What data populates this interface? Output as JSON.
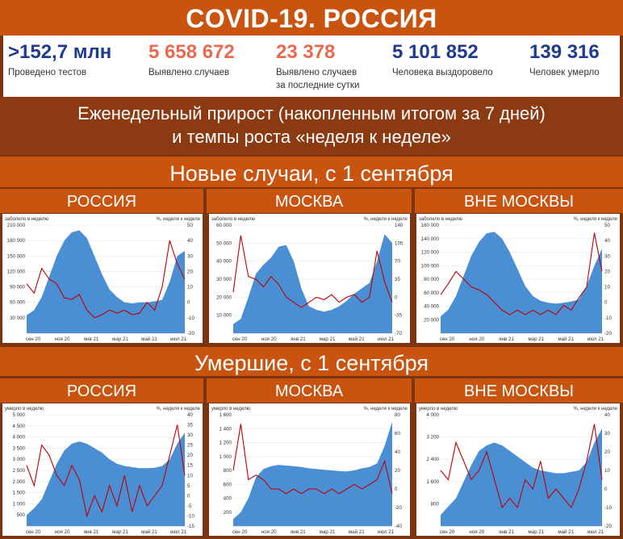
{
  "title": "COVID-19. РОССИЯ",
  "stats": [
    {
      "value": ">152,7 млн",
      "label": "Проведено тестов",
      "color": "#1f3b8f"
    },
    {
      "value": "5 658 672",
      "label": "Выявлено случаев",
      "color": "#e9694f"
    },
    {
      "value": "23 378",
      "label": "Выявлено случаев\nза последние сутки",
      "color": "#e9694f"
    },
    {
      "value": "5 101 852",
      "label": "Человека выздоровело",
      "color": "#1f3b8f"
    },
    {
      "value": "139 316",
      "label": "Человек умерло",
      "color": "#1f3b8f"
    }
  ],
  "subtitle_line1": "Еженедельный прирост (накопленным итогом за 7 дней)",
  "subtitle_line2": "и темпы роста «неделя к неделе»",
  "section_cases": "Новые случаи, с 1 сентября",
  "section_deaths": "Умершие, с 1 сентября",
  "regions": [
    "РОССИЯ",
    "МОСКВА",
    "ВНЕ МОСКВЫ"
  ],
  "colors": {
    "area": "#4a8fd4",
    "line": "#c00000",
    "accent": "#c8540f"
  },
  "chart_data": [
    {
      "id": "cases-russia",
      "type": "area",
      "ylabel_left": "заболело в неделю",
      "ylabel_right": "%, неделя к неделе",
      "left_ticks": [
        "210 000",
        "180 000",
        "150 000",
        "120 000",
        "90 000",
        "60 000",
        "30 000"
      ],
      "left_ticks_values": [
        210000,
        180000,
        150000,
        120000,
        90000,
        60000,
        30000
      ],
      "ylim_left": [
        0,
        210000
      ],
      "right_ticks": [
        "50",
        "40",
        "30",
        "20",
        "10",
        "0",
        "-10",
        "-20"
      ],
      "right_ticks_values": [
        50,
        40,
        30,
        20,
        10,
        0,
        -10,
        -20
      ],
      "ylim_right": [
        -20,
        50
      ],
      "x_ticks": [
        "сен 20",
        "ноя 20",
        "янв 21",
        "мар 21",
        "май 21",
        "июл 21"
      ],
      "area": [
        35000,
        45000,
        70000,
        110000,
        150000,
        180000,
        196000,
        200000,
        185000,
        150000,
        115000,
        85000,
        70000,
        60000,
        58000,
        60000,
        60000,
        62000,
        65000,
        100000,
        150000,
        160000
      ],
      "line": [
        12,
        6,
        22,
        15,
        12,
        3,
        2,
        5,
        -5,
        -10,
        -8,
        -5,
        -7,
        -5,
        -8,
        -7,
        0,
        -5,
        10,
        40,
        25,
        15
      ]
    },
    {
      "id": "cases-moscow",
      "type": "area",
      "ylabel_left": "заболело в неделю",
      "ylabel_right": "%, неделя к неделе",
      "left_ticks": [
        "60 000",
        "50 000",
        "40 000",
        "30 000",
        "20 000",
        "10 000"
      ],
      "left_ticks_values": [
        60000,
        50000,
        40000,
        30000,
        20000,
        10000
      ],
      "ylim_left": [
        0,
        60000
      ],
      "right_ticks": [
        "140",
        "105",
        "70",
        "35",
        "0",
        "-35",
        "-70"
      ],
      "right_ticks_values": [
        140,
        105,
        70,
        35,
        0,
        -35,
        -70
      ],
      "ylim_right": [
        -70,
        140
      ],
      "x_ticks": [
        "сен 20",
        "ноя 20",
        "янв 21",
        "мар 21",
        "май 21",
        "июл 21"
      ],
      "area": [
        5000,
        8000,
        20000,
        33000,
        38000,
        42000,
        48000,
        49000,
        40000,
        25000,
        15000,
        13000,
        12000,
        13000,
        15000,
        18000,
        22000,
        25000,
        28000,
        40000,
        55000,
        50000
      ],
      "line": [
        10,
        120,
        40,
        35,
        20,
        40,
        25,
        0,
        -10,
        -20,
        -10,
        0,
        -5,
        5,
        -10,
        0,
        5,
        -10,
        0,
        90,
        30,
        -10
      ]
    },
    {
      "id": "cases-outside",
      "type": "area",
      "ylabel_left": "заболело в неделю",
      "ylabel_right": "%, неделя к неделе",
      "left_ticks": [
        "160 000",
        "140 000",
        "120 000",
        "100 000",
        "80 000",
        "60 000",
        "40 000",
        "20 000"
      ],
      "left_ticks_values": [
        160000,
        140000,
        120000,
        100000,
        80000,
        60000,
        40000,
        20000
      ],
      "ylim_left": [
        0,
        160000
      ],
      "right_ticks": [
        "50",
        "40",
        "30",
        "20",
        "10",
        "0",
        "-10",
        "-20"
      ],
      "right_ticks_values": [
        50,
        40,
        30,
        20,
        10,
        0,
        -10,
        -20
      ],
      "ylim_right": [
        -20,
        50
      ],
      "x_ticks": [
        "сен 20",
        "ноя 20",
        "янв 21",
        "мар 21",
        "май 21",
        "июл 21"
      ],
      "area": [
        25000,
        35000,
        55000,
        85000,
        115000,
        135000,
        148000,
        150000,
        140000,
        120000,
        95000,
        70000,
        55000,
        48000,
        45000,
        44000,
        45000,
        47000,
        50000,
        70000,
        100000,
        125000
      ],
      "line": [
        5,
        12,
        20,
        15,
        10,
        8,
        5,
        0,
        -5,
        -8,
        -5,
        -8,
        -5,
        -8,
        -5,
        -8,
        -2,
        -5,
        3,
        10,
        45,
        20
      ]
    },
    {
      "id": "deaths-russia",
      "type": "area",
      "ylabel_left": "умерло в неделю",
      "ylabel_right": "%, неделя к неделе",
      "left_ticks": [
        "5 000",
        "4 500",
        "4 000",
        "3 500",
        "3 000",
        "2 500",
        "2 000",
        "1 500",
        "1 000",
        "500"
      ],
      "left_ticks_values": [
        5000,
        4500,
        4000,
        3500,
        3000,
        2500,
        2000,
        1500,
        1000,
        500
      ],
      "ylim_left": [
        0,
        5000
      ],
      "right_ticks": [
        "40",
        "35",
        "30",
        "25",
        "20",
        "15",
        "10",
        "5",
        "0",
        "-5",
        "-10",
        "-15"
      ],
      "right_ticks_values": [
        40,
        35,
        30,
        25,
        20,
        15,
        10,
        5,
        0,
        -5,
        -10,
        -15
      ],
      "ylim_right": [
        -15,
        40
      ],
      "x_ticks": [
        "сен 20",
        "ноя 20",
        "янв 21",
        "мар 21",
        "май 21",
        "июл 21"
      ],
      "area": [
        500,
        800,
        1200,
        2000,
        2800,
        3400,
        3700,
        3800,
        3700,
        3500,
        3300,
        3000,
        2800,
        2700,
        2650,
        2600,
        2600,
        2620,
        2700,
        3000,
        3700,
        4200
      ],
      "line": [
        15,
        5,
        25,
        20,
        10,
        5,
        15,
        8,
        -10,
        0,
        -8,
        5,
        -5,
        10,
        -8,
        5,
        -5,
        0,
        5,
        20,
        35,
        10
      ]
    },
    {
      "id": "deaths-moscow",
      "type": "area",
      "ylabel_left": "умерло в неделю",
      "ylabel_right": "%, неделя к неделе",
      "left_ticks": [
        "1 600",
        "1 400",
        "1 200",
        "1 000",
        "800",
        "600",
        "400",
        "200"
      ],
      "left_ticks_values": [
        1600,
        1400,
        1200,
        1000,
        800,
        600,
        400,
        200
      ],
      "ylim_left": [
        0,
        1600
      ],
      "right_ticks": [
        "80",
        "60",
        "40",
        "20",
        "0",
        "-20",
        "-40"
      ],
      "right_ticks_values": [
        80,
        60,
        40,
        20,
        0,
        -20,
        -40
      ],
      "ylim_right": [
        -40,
        80
      ],
      "x_ticks": [
        "сен 20",
        "ноя 20",
        "янв 21",
        "мар 21",
        "май 21",
        "июл 21"
      ],
      "area": [
        100,
        200,
        400,
        700,
        820,
        860,
        880,
        870,
        860,
        850,
        830,
        820,
        810,
        800,
        790,
        785,
        800,
        830,
        850,
        900,
        1150,
        1500
      ],
      "line": [
        20,
        70,
        10,
        15,
        10,
        0,
        0,
        -5,
        0,
        -5,
        0,
        0,
        -5,
        0,
        -5,
        0,
        5,
        0,
        5,
        10,
        30,
        -5
      ]
    },
    {
      "id": "deaths-outside",
      "type": "area",
      "ylabel_left": "умерло в неделю",
      "ylabel_right": "%, неделя к неделе",
      "left_ticks": [
        "4 000",
        "3 200",
        "2 400",
        "1 600",
        "800"
      ],
      "left_ticks_values": [
        4000,
        3200,
        2400,
        1600,
        800
      ],
      "ylim_left": [
        0,
        4000
      ],
      "right_ticks": [
        "40",
        "30",
        "20",
        "10",
        "0",
        "-10",
        "-20"
      ],
      "right_ticks_values": [
        40,
        30,
        20,
        10,
        0,
        -10,
        -20
      ],
      "ylim_right": [
        -20,
        40
      ],
      "x_ticks": [
        "сен 20",
        "ноя 20",
        "янв 21",
        "мар 21",
        "май 21",
        "июл 21"
      ],
      "area": [
        400,
        700,
        1000,
        1600,
        2200,
        2700,
        2900,
        3000,
        2900,
        2700,
        2500,
        2300,
        2100,
        2000,
        1950,
        1900,
        1900,
        1950,
        2000,
        2300,
        3000,
        3500
      ],
      "line": [
        10,
        5,
        25,
        15,
        5,
        10,
        20,
        5,
        -10,
        -5,
        -10,
        5,
        0,
        15,
        -5,
        0,
        -5,
        -10,
        0,
        15,
        35,
        5
      ]
    }
  ]
}
